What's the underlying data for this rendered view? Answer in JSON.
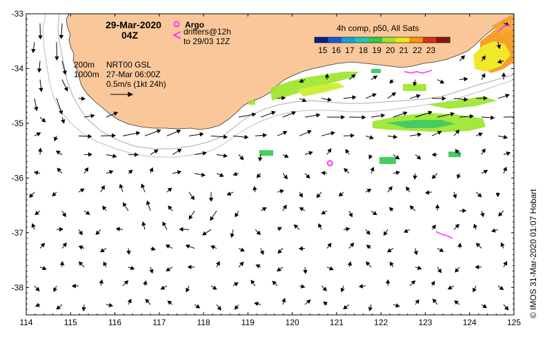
{
  "map": {
    "date": "29-Mar-2020",
    "hour": "04Z",
    "argo_label": "Argo",
    "drifters_label": "drifters@12h",
    "drifters_to": "to 29/03 12Z",
    "composite_label": "4h comp, p50, All Sats",
    "isobath_200": "200m",
    "isobath_1000": "1000m",
    "product": "NRT00 GSL",
    "product_time": "27-Mar 06:00Z",
    "scale_label": "0.5m/s (1kt 24h)",
    "credit": "© IMOS 31-Mar-2020 01:07 Hobart",
    "colors": {
      "land": "#f9c79a",
      "argo": "#ff33ff",
      "drifter": "#ff33ff",
      "isobath": "#a0a0a0"
    },
    "colorbar": {
      "labels": [
        "15",
        "16",
        "17",
        "18",
        "19",
        "20",
        "21",
        "22",
        "23"
      ],
      "colors": [
        "#0a1e8c",
        "#1a5ad2",
        "#12a0e6",
        "#1ec8b4",
        "#32c850",
        "#9be628",
        "#f0e614",
        "#f59614",
        "#d2321e",
        "#8c1410"
      ]
    },
    "axes": {
      "lon_labels": [
        "114",
        "115",
        "116",
        "117",
        "118",
        "119",
        "120",
        "121",
        "122",
        "123",
        "124",
        "125"
      ],
      "lat_labels": [
        "-33",
        "-34",
        "-35",
        "-36",
        "-37",
        "-38"
      ],
      "lon_range": [
        114,
        125
      ],
      "lat_range": [
        -38.5,
        -33
      ]
    },
    "argo_floats": [
      {
        "lon": 120.85,
        "lat": -35.73
      }
    ]
  }
}
